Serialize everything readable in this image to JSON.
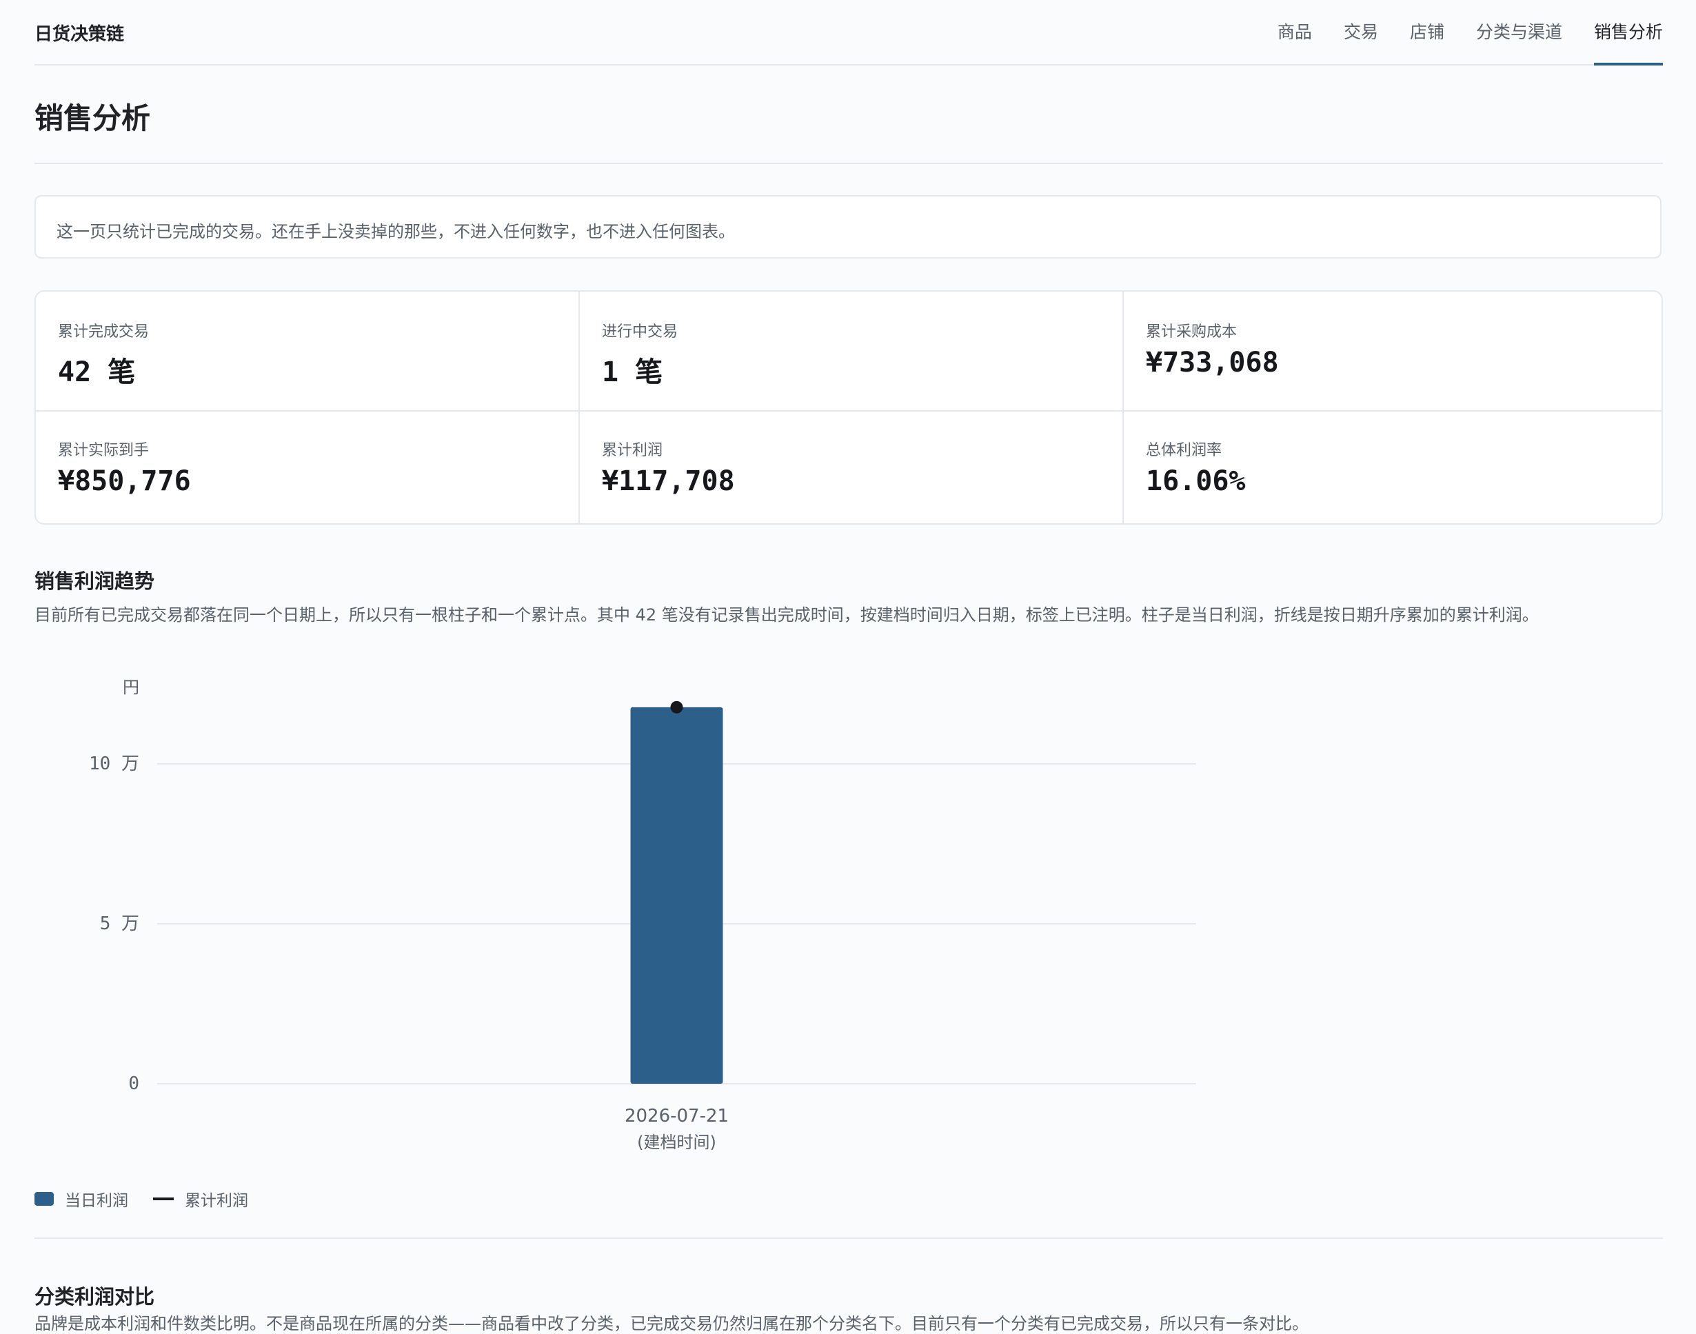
{
  "header": {
    "brand": "日货决策链",
    "nav": [
      "商品",
      "交易",
      "店铺",
      "分类与渠道",
      "销售分析"
    ],
    "active_index": 4
  },
  "page": {
    "title": "销售分析",
    "notice": "这一页只统计已完成的交易。还在手上没卖掉的那些，不进入任何数字，也不进入任何图表。"
  },
  "stats": [
    {
      "label": "累计完成交易",
      "value": "42 笔"
    },
    {
      "label": "进行中交易",
      "value": "1 笔"
    },
    {
      "label": "累计采购成本",
      "value": "¥733,068"
    },
    {
      "label": "累计实际到手",
      "value": "¥850,776"
    },
    {
      "label": "累计利润",
      "value": "¥117,708"
    },
    {
      "label": "总体利润率",
      "value": "16.06%"
    }
  ],
  "trend": {
    "title": "销售利润趋势",
    "desc": "目前所有已完成交易都落在同一个日期上，所以只有一根柱子和一个累计点。其中 42 笔没有记录售出完成时间，按建档时间归入日期，标签上已注明。柱子是当日利润，折线是按日期升序累加的累计利润。",
    "legend": {
      "bar": "当日利润",
      "line": "累计利润"
    }
  },
  "chart_data": {
    "type": "bar",
    "unit_label": "円",
    "categories": [
      "2026-07-21"
    ],
    "category_notes": [
      "(建档时间)"
    ],
    "series": [
      {
        "name": "当日利润",
        "type": "bar",
        "values": [
          117708
        ],
        "color": "#2d5f8b"
      },
      {
        "name": "累计利润",
        "type": "line",
        "values": [
          117708
        ],
        "color": "#16181b"
      }
    ],
    "yticks": [
      {
        "value": 0,
        "label": "0"
      },
      {
        "value": 50000,
        "label": "5 万"
      },
      {
        "value": 100000,
        "label": "10 万"
      }
    ],
    "ylim": [
      0,
      125000
    ],
    "grid": true,
    "legend_position": "bottom-left"
  },
  "category_section": {
    "title": "分类利润对比",
    "desc_partial": "品牌是成本利润和件数类比明。不是商品现在所属的分类——商品看中改了分类，已完成交易仍然归属在那个分类名下。目前只有一个分类有已完成交易，所以只有一条对比。"
  }
}
